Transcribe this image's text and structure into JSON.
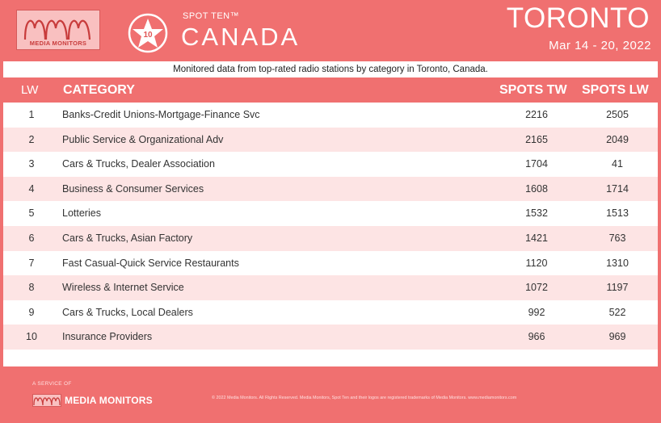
{
  "header": {
    "logo_text": "MEDIA MONITORS",
    "badge_number": "10",
    "spot_ten": "SPOT TEN™",
    "country": "CANADA",
    "city": "TORONTO",
    "date_range": "Mar 14 - 20, 2022"
  },
  "subtitle": "Monitored data from top-rated radio stations by category in Toronto, Canada.",
  "table": {
    "columns": [
      "LW",
      "CATEGORY",
      "SPOTS TW",
      "SPOTS LW"
    ],
    "rows": [
      {
        "lw": "1",
        "category": "Banks-Credit Unions-Mortgage-Finance Svc",
        "spots_tw": "2216",
        "spots_lw": "2505"
      },
      {
        "lw": "2",
        "category": "Public Service & Organizational Adv",
        "spots_tw": "2165",
        "spots_lw": "2049"
      },
      {
        "lw": "3",
        "category": "Cars & Trucks, Dealer Association",
        "spots_tw": "1704",
        "spots_lw": "41"
      },
      {
        "lw": "4",
        "category": "Business & Consumer Services",
        "spots_tw": "1608",
        "spots_lw": "1714"
      },
      {
        "lw": "5",
        "category": "Lotteries",
        "spots_tw": "1532",
        "spots_lw": "1513"
      },
      {
        "lw": "6",
        "category": "Cars & Trucks, Asian Factory",
        "spots_tw": "1421",
        "spots_lw": "763"
      },
      {
        "lw": "7",
        "category": "Fast Casual-Quick Service Restaurants",
        "spots_tw": "1120",
        "spots_lw": "1310"
      },
      {
        "lw": "8",
        "category": "Wireless & Internet Service",
        "spots_tw": "1072",
        "spots_lw": "1197"
      },
      {
        "lw": "9",
        "category": "Cars & Trucks, Local Dealers",
        "spots_tw": "992",
        "spots_lw": "522"
      },
      {
        "lw": "10",
        "category": "Insurance Providers",
        "spots_tw": "966",
        "spots_lw": "969"
      }
    ]
  },
  "footer": {
    "service_of": "A SERVICE OF",
    "logo_text": "MEDIA MONITORS",
    "copyright": "© 2022 Media Monitors. All Rights Reserved. Media Monitors, Spot Ten and their logos are registered trademarks of Media Monitors. www.mediamonitors.com"
  },
  "colors": {
    "brand": "#f07070",
    "row_alt": "#fde4e4",
    "logo_fill": "#f9c0c0",
    "logo_dark": "#c83c3c"
  }
}
